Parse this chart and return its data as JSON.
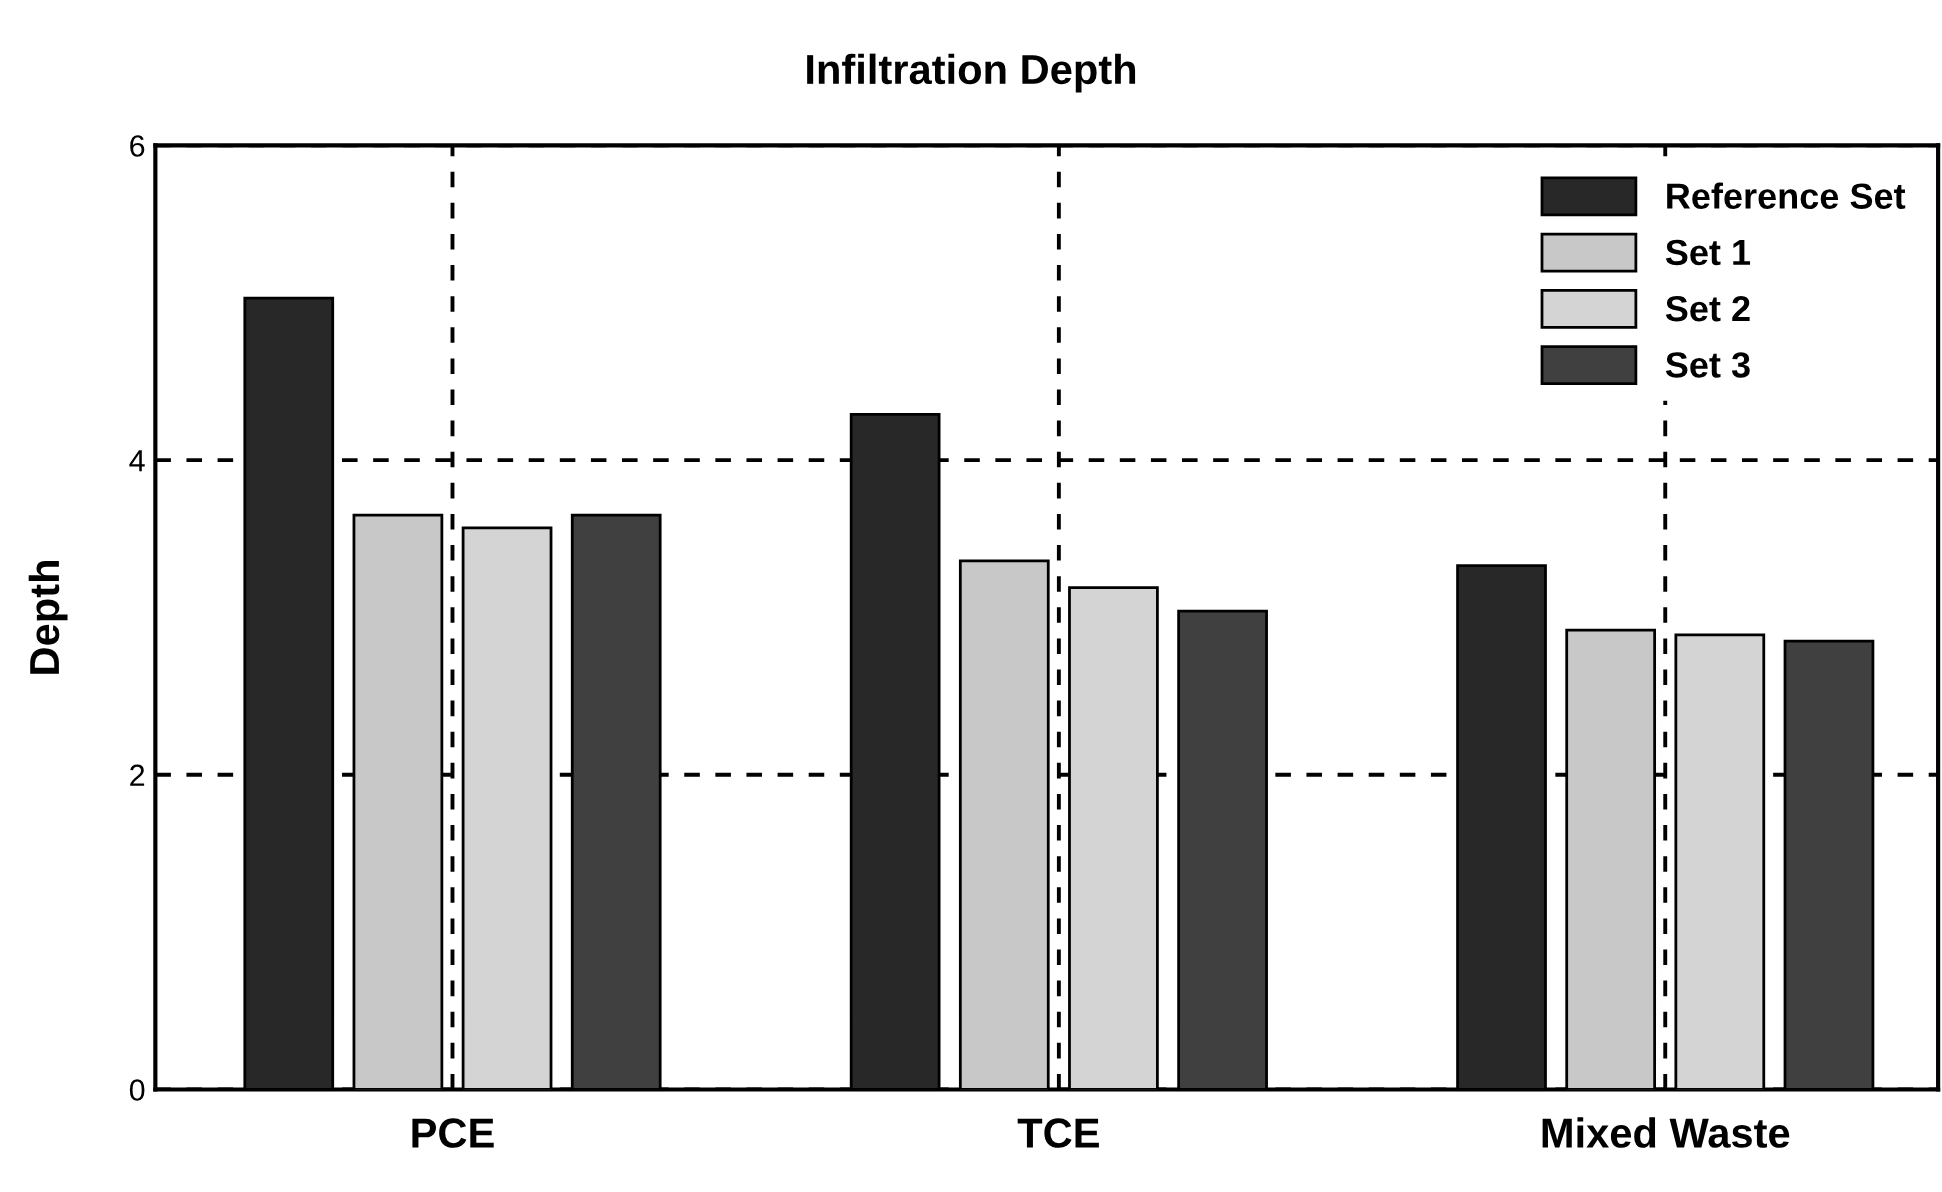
{
  "chart_data": {
    "type": "bar",
    "title": "Infiltration Depth",
    "ylabel": "Depth",
    "categories": [
      "PCE",
      "TCE",
      "Mixed Waste"
    ],
    "series": [
      {
        "name": "Reference Set",
        "color": "#282828",
        "values": [
          5.03,
          4.29,
          3.33
        ]
      },
      {
        "name": "Set 1",
        "color": "#c8c8c8",
        "values": [
          3.65,
          3.36,
          2.92
        ]
      },
      {
        "name": "Set 2",
        "color": "#d4d4d4",
        "values": [
          3.57,
          3.19,
          2.89
        ]
      },
      {
        "name": "Set 3",
        "color": "#404040",
        "values": [
          3.65,
          3.04,
          2.85
        ]
      }
    ],
    "ylim": [
      0,
      6
    ],
    "yticks": [
      0,
      2,
      4,
      6
    ],
    "grid": true,
    "line_style": "dashed",
    "legend": "top right"
  }
}
